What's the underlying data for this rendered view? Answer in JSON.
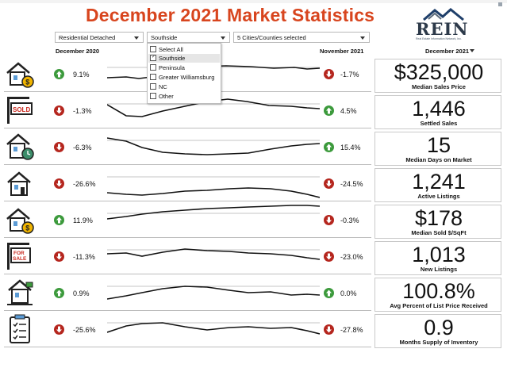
{
  "title": "December 2021 Market Statistics",
  "logo": {
    "name": "REIN",
    "tagline": "Real Estate Information Network, Inc."
  },
  "filters": {
    "property_type": "Residential Detached",
    "region": "Southside",
    "area": "5 Cities/Counties selected"
  },
  "region_dropdown": {
    "open": true,
    "options": [
      {
        "label": "Select All",
        "checked": false,
        "highlighted": false
      },
      {
        "label": "Southside",
        "checked": true,
        "highlighted": true
      },
      {
        "label": "Peninsula",
        "checked": false,
        "highlighted": false
      },
      {
        "label": "Greater Williamsburg",
        "checked": false,
        "highlighted": false
      },
      {
        "label": "NC",
        "checked": false,
        "highlighted": false
      },
      {
        "label": "Other",
        "checked": false,
        "highlighted": false
      }
    ]
  },
  "period": {
    "start": "December 2020",
    "end": "November 2021",
    "current": "December 2021"
  },
  "colors": {
    "title": "#d8451e",
    "up": "#3c9a3c",
    "down": "#b5261e"
  },
  "metrics": [
    {
      "icon": "house-dollar-icon",
      "left_dir": "up",
      "left_pct": "9.1%",
      "right_dir": "down",
      "right_pct": "-1.7%",
      "value": "$325,000",
      "label": "Median Sales Price"
    },
    {
      "icon": "sold-sign-icon",
      "left_dir": "down",
      "left_pct": "-1.3%",
      "right_dir": "up",
      "right_pct": "4.5%",
      "value": "1,446",
      "label": "Settled Sales"
    },
    {
      "icon": "house-clock-icon",
      "left_dir": "down",
      "left_pct": "-6.3%",
      "right_dir": "up",
      "right_pct": "15.4%",
      "value": "15",
      "label": "Median Days on Market"
    },
    {
      "icon": "house-icon",
      "left_dir": "down",
      "left_pct": "-26.6%",
      "right_dir": "down",
      "right_pct": "-24.5%",
      "value": "1,241",
      "label": "Active Listings"
    },
    {
      "icon": "house-dollar-icon",
      "left_dir": "up",
      "left_pct": "11.9%",
      "right_dir": "down",
      "right_pct": "-0.3%",
      "value": "$178",
      "label": "Median Sold $/SqFt"
    },
    {
      "icon": "for-sale-sign-icon",
      "left_dir": "down",
      "left_pct": "-11.3%",
      "right_dir": "down",
      "right_pct": "-23.0%",
      "value": "1,013",
      "label": "New Listings"
    },
    {
      "icon": "house-mailbox-icon",
      "left_dir": "up",
      "left_pct": "0.9%",
      "right_dir": "up",
      "right_pct": "0.0%",
      "value": "100.8%",
      "label": "Avg Percent of List Price Received"
    },
    {
      "icon": "clipboard-checklist-icon",
      "left_dir": "down",
      "left_pct": "-25.6%",
      "right_dir": "down",
      "right_pct": "-27.8%",
      "value": "0.9",
      "label": "Months Supply of Inventory"
    }
  ]
}
